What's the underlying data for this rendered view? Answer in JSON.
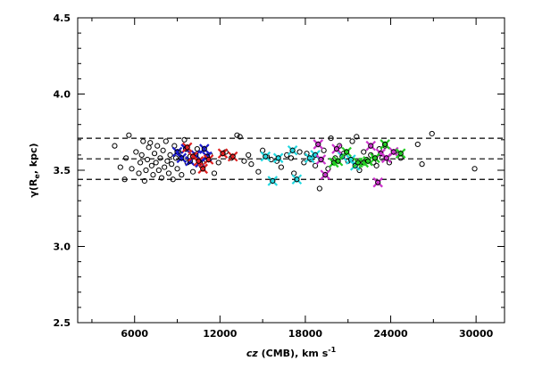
{
  "chart_data": {
    "type": "scatter",
    "xlabel_var": "cz",
    "xlabel_rest": " (CMB), km s",
    "xlabel_sup": "-1",
    "ylabel_main": "γ(R",
    "ylabel_sub": "e",
    "ylabel_rest": ", kpc)",
    "xlim": [
      2000,
      32000
    ],
    "ylim": [
      2.5,
      4.5
    ],
    "xticks": [
      6000,
      12000,
      18000,
      24000,
      30000
    ],
    "xtick_labels": [
      "6000",
      "12000",
      "18000",
      "24000",
      "30000"
    ],
    "yticks": [
      2.5,
      3.0,
      3.5,
      4.0,
      4.5
    ],
    "ytick_labels": [
      "2.5",
      "3.0",
      "3.5",
      "4.0",
      "4.5"
    ],
    "hlines": [
      3.71,
      3.575,
      3.44
    ],
    "colors": {
      "blue": "#1a1acc",
      "red": "#e02020",
      "cyan": "#22d8e0",
      "magenta": "#cc33cc",
      "green": "#22cc22"
    },
    "series": [
      {
        "marker": "open-circle",
        "color": "#000000",
        "points": [
          [
            4600,
            3.66
          ],
          [
            5000,
            3.52
          ],
          [
            5300,
            3.44
          ],
          [
            5400,
            3.58
          ],
          [
            5600,
            3.73
          ],
          [
            5800,
            3.51
          ],
          [
            6100,
            3.62
          ],
          [
            6300,
            3.48
          ],
          [
            6400,
            3.55
          ],
          [
            6500,
            3.6
          ],
          [
            6600,
            3.69
          ],
          [
            6700,
            3.43
          ],
          [
            6800,
            3.5
          ],
          [
            6900,
            3.57
          ],
          [
            7000,
            3.65
          ],
          [
            7100,
            3.68
          ],
          [
            7200,
            3.53
          ],
          [
            7300,
            3.47
          ],
          [
            7400,
            3.61
          ],
          [
            7500,
            3.55
          ],
          [
            7600,
            3.66
          ],
          [
            7700,
            3.5
          ],
          [
            7800,
            3.58
          ],
          [
            7900,
            3.45
          ],
          [
            8000,
            3.63
          ],
          [
            8100,
            3.52
          ],
          [
            8200,
            3.69
          ],
          [
            8300,
            3.56
          ],
          [
            8400,
            3.48
          ],
          [
            8500,
            3.6
          ],
          [
            8600,
            3.54
          ],
          [
            8700,
            3.44
          ],
          [
            8800,
            3.66
          ],
          [
            8900,
            3.58
          ],
          [
            9000,
            3.51
          ],
          [
            9100,
            3.62
          ],
          [
            9300,
            3.47
          ],
          [
            9500,
            3.7
          ],
          [
            9700,
            3.55
          ],
          [
            9900,
            3.59
          ],
          [
            10100,
            3.49
          ],
          [
            10400,
            3.64
          ],
          [
            10700,
            3.53
          ],
          [
            11000,
            3.57
          ],
          [
            11300,
            3.6
          ],
          [
            11600,
            3.48
          ],
          [
            11900,
            3.55
          ],
          [
            12400,
            3.62
          ],
          [
            12800,
            3.58
          ],
          [
            13200,
            3.73
          ],
          [
            13400,
            3.72
          ],
          [
            13700,
            3.56
          ],
          [
            14000,
            3.6
          ],
          [
            14200,
            3.54
          ],
          [
            14700,
            3.49
          ],
          [
            15000,
            3.63
          ],
          [
            15300,
            3.59
          ],
          [
            15600,
            3.57
          ],
          [
            16000,
            3.56
          ],
          [
            16300,
            3.52
          ],
          [
            16700,
            3.6
          ],
          [
            17000,
            3.58
          ],
          [
            17200,
            3.48
          ],
          [
            17600,
            3.62
          ],
          [
            17900,
            3.55
          ],
          [
            18100,
            3.61
          ],
          [
            18400,
            3.57
          ],
          [
            18700,
            3.53
          ],
          [
            19000,
            3.38
          ],
          [
            19300,
            3.63
          ],
          [
            19600,
            3.51
          ],
          [
            19800,
            3.71
          ],
          [
            20100,
            3.58
          ],
          [
            20400,
            3.66
          ],
          [
            20700,
            3.61
          ],
          [
            21000,
            3.56
          ],
          [
            21300,
            3.69
          ],
          [
            21600,
            3.72
          ],
          [
            21800,
            3.5
          ],
          [
            22100,
            3.62
          ],
          [
            22300,
            3.57
          ],
          [
            22600,
            3.6
          ],
          [
            22800,
            3.55
          ],
          [
            23000,
            3.53
          ],
          [
            23200,
            3.64
          ],
          [
            23400,
            3.58
          ],
          [
            23600,
            3.66
          ],
          [
            23900,
            3.55
          ],
          [
            24300,
            3.62
          ],
          [
            24700,
            3.58
          ],
          [
            25900,
            3.67
          ],
          [
            26200,
            3.54
          ],
          [
            26900,
            3.74
          ],
          [
            29900,
            3.51
          ]
        ]
      },
      {
        "marker": "star-x",
        "color": "#1a1acc",
        "points": [
          [
            9000,
            3.62
          ],
          [
            9300,
            3.58
          ],
          [
            9600,
            3.64
          ],
          [
            9900,
            3.56
          ],
          [
            10300,
            3.6
          ],
          [
            10600,
            3.55
          ],
          [
            10900,
            3.64
          ],
          [
            11100,
            3.59
          ]
        ]
      },
      {
        "marker": "star-x",
        "color": "#e02020",
        "points": [
          [
            9700,
            3.65
          ],
          [
            10100,
            3.59
          ],
          [
            10500,
            3.56
          ],
          [
            10800,
            3.51
          ],
          [
            11200,
            3.57
          ],
          [
            12200,
            3.61
          ],
          [
            12900,
            3.59
          ]
        ]
      },
      {
        "marker": "star-x",
        "color": "#22d8e0",
        "points": [
          [
            15200,
            3.59
          ],
          [
            15700,
            3.43
          ],
          [
            16100,
            3.58
          ],
          [
            17100,
            3.63
          ],
          [
            17400,
            3.44
          ],
          [
            18300,
            3.58
          ],
          [
            18700,
            3.6
          ],
          [
            20600,
            3.59
          ],
          [
            21200,
            3.57
          ],
          [
            21500,
            3.53
          ]
        ]
      },
      {
        "marker": "star-x",
        "color": "#cc33cc",
        "points": [
          [
            18900,
            3.67
          ],
          [
            19100,
            3.57
          ],
          [
            19400,
            3.47
          ],
          [
            20200,
            3.64
          ],
          [
            22600,
            3.66
          ],
          [
            23100,
            3.42
          ],
          [
            23300,
            3.61
          ],
          [
            23700,
            3.58
          ],
          [
            24200,
            3.62
          ]
        ]
      },
      {
        "marker": "star-x",
        "color": "#22cc22",
        "points": [
          [
            20000,
            3.55
          ],
          [
            20300,
            3.56
          ],
          [
            20900,
            3.62
          ],
          [
            21700,
            3.55
          ],
          [
            22100,
            3.55
          ],
          [
            22400,
            3.56
          ],
          [
            22900,
            3.58
          ],
          [
            23600,
            3.67
          ],
          [
            24700,
            3.61
          ]
        ]
      }
    ]
  }
}
